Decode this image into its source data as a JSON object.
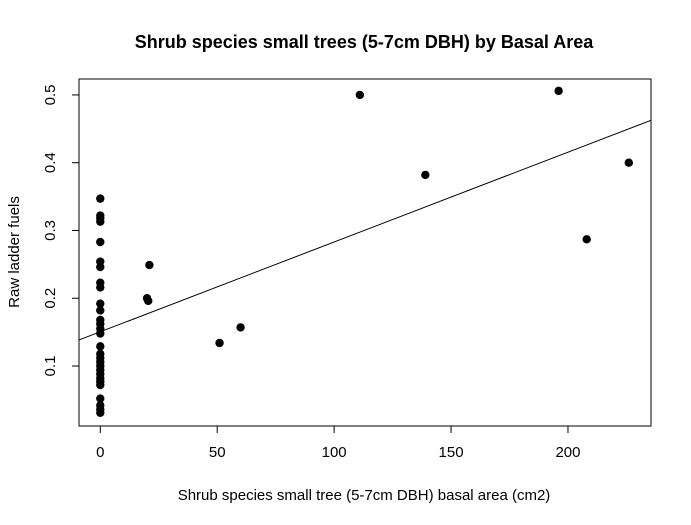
{
  "chart_data": {
    "type": "scatter",
    "title": "Shrub species small trees (5-7cm DBH) by Basal Area",
    "xlabel": "Shrub species small tree (5-7cm DBH) basal area (cm2)",
    "ylabel": "Raw ladder fuels",
    "xlim": [
      -9.1,
      235.5
    ],
    "ylim": [
      0.0115,
      0.5235
    ],
    "x_ticks": [
      0,
      50,
      100,
      150,
      200
    ],
    "x_tick_labels": [
      "0",
      "50",
      "100",
      "150",
      "200"
    ],
    "y_ticks": [
      0.1,
      0.2,
      0.3,
      0.4,
      0.5
    ],
    "y_tick_labels": [
      "0.1",
      "0.2",
      "0.3",
      "0.4",
      "0.5"
    ],
    "grid": false,
    "legend": "none",
    "point_color": "#000000",
    "points": [
      {
        "x": 0,
        "y": 0.347
      },
      {
        "x": 0,
        "y": 0.322
      },
      {
        "x": 0,
        "y": 0.318
      },
      {
        "x": 0,
        "y": 0.313
      },
      {
        "x": 0,
        "y": 0.283
      },
      {
        "x": 0,
        "y": 0.254
      },
      {
        "x": 0,
        "y": 0.246
      },
      {
        "x": 0,
        "y": 0.223
      },
      {
        "x": 0,
        "y": 0.216
      },
      {
        "x": 0,
        "y": 0.192
      },
      {
        "x": 0,
        "y": 0.182
      },
      {
        "x": 0,
        "y": 0.168
      },
      {
        "x": 0,
        "y": 0.162
      },
      {
        "x": 0,
        "y": 0.155
      },
      {
        "x": 0,
        "y": 0.148
      },
      {
        "x": 0,
        "y": 0.129
      },
      {
        "x": 0,
        "y": 0.118
      },
      {
        "x": 0,
        "y": 0.112
      },
      {
        "x": 0,
        "y": 0.106
      },
      {
        "x": 0,
        "y": 0.1
      },
      {
        "x": 0,
        "y": 0.094
      },
      {
        "x": 0,
        "y": 0.088
      },
      {
        "x": 0,
        "y": 0.082
      },
      {
        "x": 0,
        "y": 0.077
      },
      {
        "x": 0,
        "y": 0.072
      },
      {
        "x": 0,
        "y": 0.052
      },
      {
        "x": 0,
        "y": 0.042
      },
      {
        "x": 0,
        "y": 0.036
      },
      {
        "x": 0,
        "y": 0.031
      },
      {
        "x": 20,
        "y": 0.2
      },
      {
        "x": 20.5,
        "y": 0.196
      },
      {
        "x": 21,
        "y": 0.249
      },
      {
        "x": 51,
        "y": 0.134
      },
      {
        "x": 60,
        "y": 0.157
      },
      {
        "x": 111,
        "y": 0.5
      },
      {
        "x": 139,
        "y": 0.382
      },
      {
        "x": 196,
        "y": 0.506
      },
      {
        "x": 208,
        "y": 0.287
      },
      {
        "x": 226,
        "y": 0.4
      }
    ],
    "trend_line": {
      "intercept": 0.1505,
      "slope": 0.001325
    }
  }
}
